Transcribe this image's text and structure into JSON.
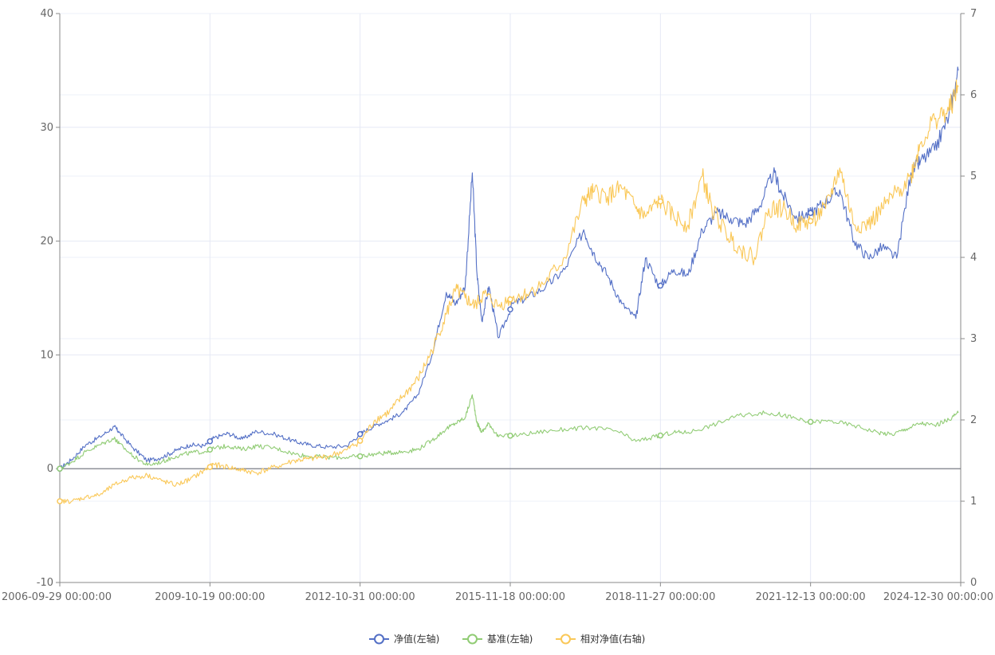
{
  "chart_data": {
    "type": "line",
    "title": "",
    "xlabel": "",
    "ylabel": "",
    "x_ticks": [
      "2006-09-29 00:00:00",
      "2009-10-19 00:00:00",
      "2012-10-31 00:00:00",
      "2015-11-18 00:00:00",
      "2018-11-27 00:00:00",
      "2021-12-13 00:00:00",
      "2024-12-30 00:00:00"
    ],
    "y_left_ticks": [
      "-10",
      "0",
      "10",
      "20",
      "30",
      "40"
    ],
    "y_right_ticks": [
      "0",
      "1",
      "2",
      "3",
      "4",
      "5",
      "6",
      "7"
    ],
    "y_left_range": [
      -10,
      40
    ],
    "y_right_range": [
      0,
      7
    ],
    "x_range": [
      2006.75,
      2025.75
    ],
    "grid": true,
    "legend_position": "bottom-center",
    "colors": {
      "nav": "#5470c6",
      "benchmark": "#91cc75",
      "relative": "#fac858"
    },
    "series": [
      {
        "name": "净值(左轴)",
        "axis": "left",
        "color": "#5470c6",
        "x": [
          2006.75,
          2007.0,
          2007.3,
          2007.6,
          2007.9,
          2008.0,
          2008.3,
          2008.6,
          2008.9,
          2009.2,
          2009.5,
          2009.8,
          2010.0,
          2010.3,
          2010.6,
          2010.9,
          2011.3,
          2011.7,
          2012.0,
          2012.4,
          2012.8,
          2013.1,
          2013.4,
          2013.7,
          2014.0,
          2014.3,
          2014.6,
          2014.9,
          2015.1,
          2015.3,
          2015.45,
          2015.55,
          2015.65,
          2015.8,
          2016.0,
          2016.3,
          2016.6,
          2017.0,
          2017.4,
          2017.8,
          2018.0,
          2018.3,
          2018.6,
          2018.9,
          2019.1,
          2019.4,
          2019.7,
          2020.0,
          2020.3,
          2020.6,
          2020.9,
          2021.2,
          2021.5,
          2021.8,
          2022.0,
          2022.3,
          2022.6,
          2022.9,
          2023.2,
          2023.5,
          2023.8,
          2024.1,
          2024.4,
          2024.7,
          2024.9,
          2025.2,
          2025.5,
          2025.7
        ],
        "y": [
          0,
          0.8,
          2.1,
          2.8,
          3.7,
          3.2,
          1.8,
          0.7,
          1.0,
          1.6,
          2.1,
          2.0,
          2.7,
          3.1,
          2.6,
          3.3,
          3.0,
          2.4,
          2.1,
          1.9,
          2.0,
          3.1,
          3.8,
          4.3,
          5.0,
          6.5,
          10.0,
          15.5,
          14.5,
          16.0,
          26.0,
          17.0,
          13.0,
          16.0,
          11.5,
          14.5,
          15.0,
          16.0,
          17.5,
          21.0,
          19.0,
          17.0,
          14.5,
          13.2,
          18.5,
          16.0,
          17.5,
          17.0,
          21.0,
          22.5,
          22.0,
          21.5,
          23.0,
          26.0,
          24.0,
          22.0,
          22.5,
          23.5,
          24.5,
          20.0,
          18.5,
          19.5,
          18.5,
          26.0,
          27.0,
          28.0,
          31.0,
          35.0
        ]
      },
      {
        "name": "基准(左轴)",
        "axis": "left",
        "color": "#91cc75",
        "x": [
          2006.75,
          2007.0,
          2007.3,
          2007.6,
          2007.9,
          2008.0,
          2008.3,
          2008.6,
          2008.9,
          2009.2,
          2009.5,
          2009.8,
          2010.0,
          2010.3,
          2010.6,
          2010.9,
          2011.3,
          2011.7,
          2012.0,
          2012.4,
          2012.8,
          2013.1,
          2013.4,
          2013.7,
          2014.0,
          2014.3,
          2014.6,
          2014.9,
          2015.1,
          2015.3,
          2015.45,
          2015.55,
          2015.65,
          2015.8,
          2016.0,
          2016.5,
          2017.0,
          2017.5,
          2018.0,
          2018.5,
          2018.9,
          2019.3,
          2019.7,
          2020.0,
          2020.5,
          2021.0,
          2021.5,
          2021.9,
          2022.2,
          2022.5,
          2023.0,
          2023.5,
          2024.0,
          2024.3,
          2024.6,
          2024.9,
          2025.2,
          2025.5,
          2025.7
        ],
        "y": [
          0,
          0.6,
          1.5,
          2.1,
          2.7,
          2.2,
          1.1,
          0.3,
          0.6,
          1.1,
          1.4,
          1.5,
          1.8,
          2.0,
          1.7,
          2.0,
          1.8,
          1.3,
          1.1,
          1.0,
          1.0,
          1.1,
          1.3,
          1.4,
          1.5,
          1.7,
          2.5,
          3.5,
          4.0,
          4.5,
          6.5,
          4.0,
          3.2,
          4.0,
          2.8,
          3.0,
          3.3,
          3.5,
          3.6,
          3.3,
          2.4,
          2.8,
          3.2,
          3.2,
          3.8,
          4.6,
          4.9,
          4.8,
          4.5,
          4.1,
          4.2,
          3.8,
          3.2,
          3.0,
          3.5,
          4.0,
          3.8,
          4.3,
          4.9
        ]
      },
      {
        "name": "相对净值(右轴)",
        "axis": "right",
        "color": "#fac858",
        "x": [
          2006.75,
          2007.0,
          2007.3,
          2007.6,
          2007.9,
          2008.2,
          2008.6,
          2008.9,
          2009.2,
          2009.5,
          2009.8,
          2010.0,
          2010.3,
          2010.6,
          2010.9,
          2011.3,
          2011.7,
          2012.0,
          2012.4,
          2012.8,
          2013.1,
          2013.4,
          2013.7,
          2014.0,
          2014.3,
          2014.6,
          2014.9,
          2015.1,
          2015.3,
          2015.5,
          2015.7,
          2016.0,
          2016.3,
          2016.6,
          2017.0,
          2017.4,
          2017.8,
          2018.0,
          2018.3,
          2018.6,
          2018.9,
          2019.1,
          2019.4,
          2019.7,
          2020.0,
          2020.3,
          2020.5,
          2020.8,
          2021.1,
          2021.4,
          2021.7,
          2022.0,
          2022.3,
          2022.6,
          2022.9,
          2023.2,
          2023.5,
          2023.8,
          2024.1,
          2024.4,
          2024.7,
          2024.9,
          2025.2,
          2025.5,
          2025.7
        ],
        "y": [
          1.0,
          1.0,
          1.05,
          1.08,
          1.2,
          1.28,
          1.32,
          1.25,
          1.2,
          1.27,
          1.38,
          1.45,
          1.42,
          1.38,
          1.35,
          1.42,
          1.5,
          1.52,
          1.55,
          1.63,
          1.75,
          2.0,
          2.1,
          2.3,
          2.5,
          2.85,
          3.3,
          3.6,
          3.5,
          3.4,
          3.55,
          3.4,
          3.5,
          3.55,
          3.7,
          4.0,
          4.7,
          4.8,
          4.75,
          4.85,
          4.6,
          4.5,
          4.7,
          4.5,
          4.4,
          5.0,
          4.6,
          4.3,
          4.1,
          4.0,
          4.6,
          4.6,
          4.4,
          4.45,
          4.6,
          5.1,
          4.4,
          4.4,
          4.6,
          4.8,
          5.0,
          5.4,
          5.7,
          5.8,
          6.1
        ]
      }
    ]
  }
}
